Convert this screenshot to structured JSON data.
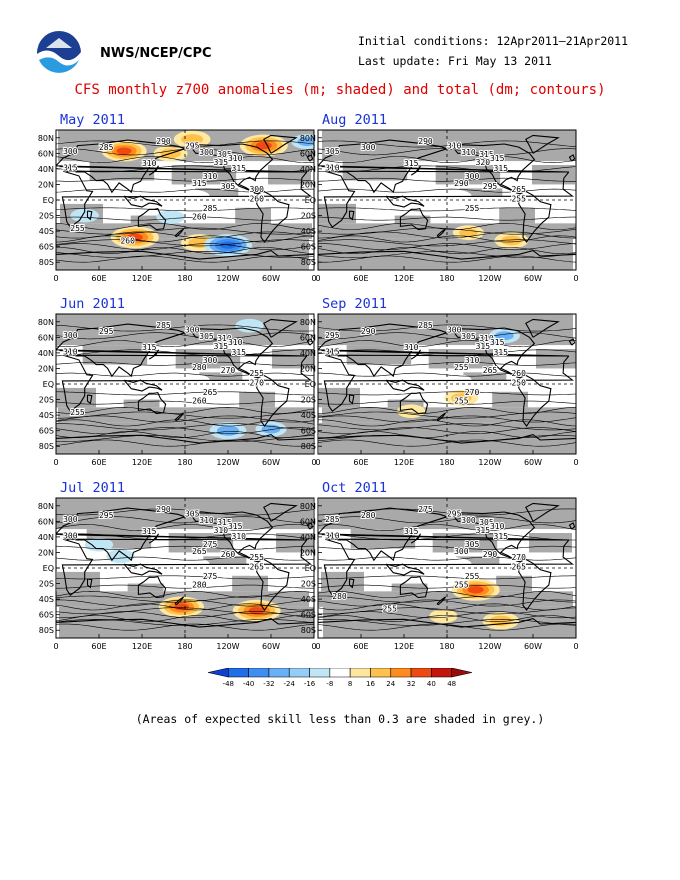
{
  "header": {
    "org": "NWS/NCEP/CPC",
    "initial_conditions": "Initial conditions: 12Apr2011–21Apr2011",
    "last_update": "Last update: Fri May 13 2011"
  },
  "title": "CFS monthly z700 anomalies (m; shaded) and total (dm; contours)",
  "axes": {
    "lat_labels": [
      "80N",
      "60N",
      "40N",
      "20N",
      "EQ",
      "20S",
      "40S",
      "60S",
      "80S"
    ],
    "lon_labels": [
      "0",
      "60E",
      "120E",
      "180",
      "120W",
      "60W",
      "0"
    ]
  },
  "panels": [
    {
      "month": "May 2011",
      "contour_labels": [
        "290",
        "285",
        "300",
        "295",
        "300",
        "305",
        "310",
        "315",
        "310",
        "315",
        "315",
        "310",
        "315",
        "305",
        "300",
        "260",
        "285",
        "260",
        "255",
        "260"
      ],
      "anomalies": [
        {
          "lon": 95,
          "lat": 63,
          "sign": 1,
          "mag": 0.9
        },
        {
          "lon": 190,
          "lat": 78,
          "sign": 1,
          "mag": 0.6
        },
        {
          "lon": 290,
          "lat": 70,
          "sign": 1,
          "mag": 1
        },
        {
          "lon": 160,
          "lat": 60,
          "sign": 1,
          "mag": 0.5
        },
        {
          "lon": 350,
          "lat": 75,
          "sign": -1,
          "mag": 0.4
        },
        {
          "lon": 110,
          "lat": -48,
          "sign": 1,
          "mag": 1
        },
        {
          "lon": 200,
          "lat": -55,
          "sign": 1,
          "mag": 0.6
        },
        {
          "lon": 240,
          "lat": -58,
          "sign": -1,
          "mag": 1
        },
        {
          "lon": 160,
          "lat": -22,
          "sign": -1,
          "mag": 0.3
        },
        {
          "lon": 40,
          "lat": -20,
          "sign": -1,
          "mag": 0.3
        }
      ]
    },
    {
      "month": "Aug 2011",
      "contour_labels": [
        "290",
        "300",
        "305",
        "310",
        "310",
        "315",
        "315",
        "320",
        "315",
        "310",
        "315",
        "300",
        "290",
        "295",
        "265",
        "255",
        "255"
      ],
      "anomalies": [
        {
          "lon": 270,
          "lat": -52,
          "sign": 1,
          "mag": 0.5
        },
        {
          "lon": 210,
          "lat": -42,
          "sign": 1,
          "mag": 0.4
        }
      ]
    },
    {
      "month": "Jun 2011",
      "contour_labels": [
        "285",
        "295",
        "300",
        "300",
        "305",
        "310",
        "310",
        "315",
        "315",
        "310",
        "315",
        "300",
        "280",
        "270",
        "255",
        "270",
        "265",
        "260",
        "255"
      ],
      "anomalies": [
        {
          "lon": 240,
          "lat": -60,
          "sign": -1,
          "mag": 0.6
        },
        {
          "lon": 300,
          "lat": -58,
          "sign": -1,
          "mag": 0.4
        },
        {
          "lon": 270,
          "lat": 75,
          "sign": -1,
          "mag": 0.3
        }
      ]
    },
    {
      "month": "Sep 2011",
      "contour_labels": [
        "285",
        "290",
        "295",
        "300",
        "305",
        "310",
        "315",
        "315",
        "310",
        "315",
        "315",
        "310",
        "255",
        "265",
        "260",
        "250",
        "270",
        "255"
      ],
      "anomalies": [
        {
          "lon": 200,
          "lat": -18,
          "sign": 1,
          "mag": 0.5
        },
        {
          "lon": 260,
          "lat": 62,
          "sign": -1,
          "mag": 0.4
        },
        {
          "lon": 130,
          "lat": -35,
          "sign": 1,
          "mag": 0.3
        }
      ]
    },
    {
      "month": "Jul 2011",
      "contour_labels": [
        "290",
        "295",
        "300",
        "305",
        "310",
        "315",
        "315",
        "310",
        "315",
        "300",
        "310",
        "275",
        "265",
        "260",
        "255",
        "265",
        "275",
        "280"
      ],
      "anomalies": [
        {
          "lon": 280,
          "lat": -55,
          "sign": 1,
          "mag": 1
        },
        {
          "lon": 175,
          "lat": -50,
          "sign": 1,
          "mag": 0.9
        },
        {
          "lon": 90,
          "lat": 15,
          "sign": -1,
          "mag": 0.3
        },
        {
          "lon": 60,
          "lat": 30,
          "sign": -1,
          "mag": 0.3
        }
      ]
    },
    {
      "month": "Oct 2011",
      "contour_labels": [
        "275",
        "280",
        "285",
        "295",
        "300",
        "305",
        "310",
        "315",
        "315",
        "310",
        "315",
        "305",
        "300",
        "290",
        "270",
        "265",
        "255",
        "255",
        "280",
        "255"
      ],
      "anomalies": [
        {
          "lon": 220,
          "lat": -28,
          "sign": 1,
          "mag": 1
        },
        {
          "lon": 255,
          "lat": -68,
          "sign": 1,
          "mag": 0.6
        },
        {
          "lon": 175,
          "lat": -62,
          "sign": 1,
          "mag": 0.3
        }
      ]
    }
  ],
  "colorbar": {
    "ticks": [
      "-48",
      "-40",
      "-32",
      "-24",
      "-16",
      "-8",
      "8",
      "16",
      "24",
      "32",
      "40",
      "48"
    ],
    "colors": [
      "#0c3fd6",
      "#1f6ee8",
      "#3f8ff2",
      "#6ab0f7",
      "#94cdf7",
      "#c0e6f5",
      "#ffffff",
      "#fde69e",
      "#ffc14a",
      "#ff8a1e",
      "#ee4a12",
      "#c4160c",
      "#9b0c08"
    ]
  },
  "note": "(Areas of expected skill less than 0.3 are shaded in grey.)",
  "colors": {
    "title": "#e00000",
    "panel_title": "#1a33d8",
    "skill_grey": "#a9a9a9"
  }
}
